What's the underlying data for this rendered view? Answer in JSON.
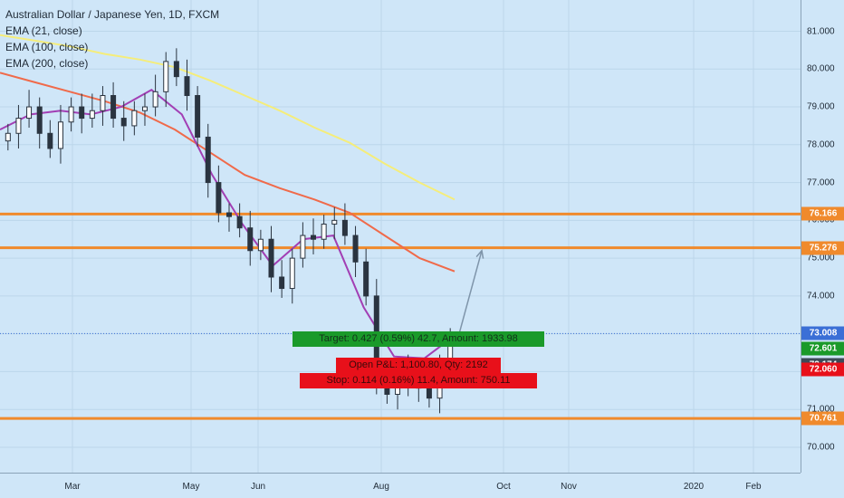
{
  "legend": {
    "title": "Australian Dollar / Japanese Yen, 1D, FXCM",
    "ema21": "EMA (21, close)",
    "ema100": "EMA (100, close)",
    "ema200": "EMA (200, close)"
  },
  "colors": {
    "background": "#cfe6f8",
    "candle": "#2a3440",
    "ema21": "#a23fb4",
    "ema100": "#f06a4a",
    "ema200": "#f5ed7a",
    "support_line": "#f08a2c",
    "target_box": "#1a9a2a",
    "stop_box": "#e8101a",
    "arrow": "#7f95aa"
  },
  "position_tags": {
    "target": "Target: 0.427 (0.59%) 42.7, Amount: 1933.98",
    "open": "Open P&L: 1,100.80, Qty: 2192",
    "stop": "Stop: 0.114 (0.16%) 11.4, Amount: 750.11"
  },
  "chart_data": {
    "type": "candlestick",
    "symbol": "AUDJPY",
    "interval": "1D",
    "source": "FXCM",
    "ylim": [
      69.5,
      81.5
    ],
    "price_ticks": [
      "70.000",
      "71.000",
      "72.000",
      "73.000",
      "74.000",
      "75.000",
      "76.000",
      "77.000",
      "78.000",
      "79.000",
      "80.000",
      "81.000"
    ],
    "time_ticks": [
      "Mar",
      "May",
      "Jun",
      "Aug",
      "Oct",
      "Nov",
      "2020",
      "Feb"
    ],
    "price_labels": [
      {
        "value": 76.166,
        "text": "76.166",
        "color": "#f08a2c"
      },
      {
        "value": 75.276,
        "text": "75.276",
        "color": "#f08a2c"
      },
      {
        "value": 73.008,
        "text": "73.008",
        "color": "#3b6fd6"
      },
      {
        "value": 72.601,
        "text": "72.601",
        "color": "#1a9a2a"
      },
      {
        "value": 72.174,
        "text": "72.174",
        "color": "#3c4a58"
      },
      {
        "value": 72.06,
        "text": "72.060",
        "color": "#e8101a"
      },
      {
        "value": 70.761,
        "text": "70.761",
        "color": "#f08a2c"
      }
    ],
    "horizontal_levels": [
      76.166,
      75.276,
      70.761
    ],
    "current_price": 73.008,
    "projection": {
      "from": 73.0,
      "to": 75.2
    },
    "ema200": [
      80.9,
      80.75,
      80.6,
      80.4,
      80.25,
      80.05,
      79.7,
      79.3,
      78.9,
      78.45,
      78.05,
      77.5,
      77.0,
      76.55
    ],
    "ema100": [
      79.9,
      79.65,
      79.4,
      79.15,
      78.85,
      78.4,
      77.8,
      77.2,
      76.85,
      76.55,
      76.2,
      75.6,
      75.0,
      74.65
    ],
    "ema21": [
      78.4,
      78.8,
      78.9,
      78.8,
      79.0,
      79.45,
      78.8,
      77.2,
      75.9,
      74.8,
      75.5,
      75.6,
      73.7,
      72.4,
      72.35,
      72.95
    ],
    "closes": [
      78.3,
      78.7,
      79.0,
      78.3,
      77.9,
      78.6,
      79.0,
      78.7,
      78.9,
      79.3,
      78.7,
      78.5,
      78.9,
      79.0,
      79.4,
      80.2,
      79.8,
      79.3,
      78.2,
      77.0,
      76.2,
      76.1,
      75.8,
      75.2,
      75.5,
      74.5,
      74.2,
      75.0,
      75.6,
      75.5,
      75.9,
      76.0,
      75.6,
      74.9,
      74.0,
      71.8,
      71.4,
      72.0,
      71.6,
      71.6,
      71.3,
      72.0,
      72.9
    ]
  }
}
